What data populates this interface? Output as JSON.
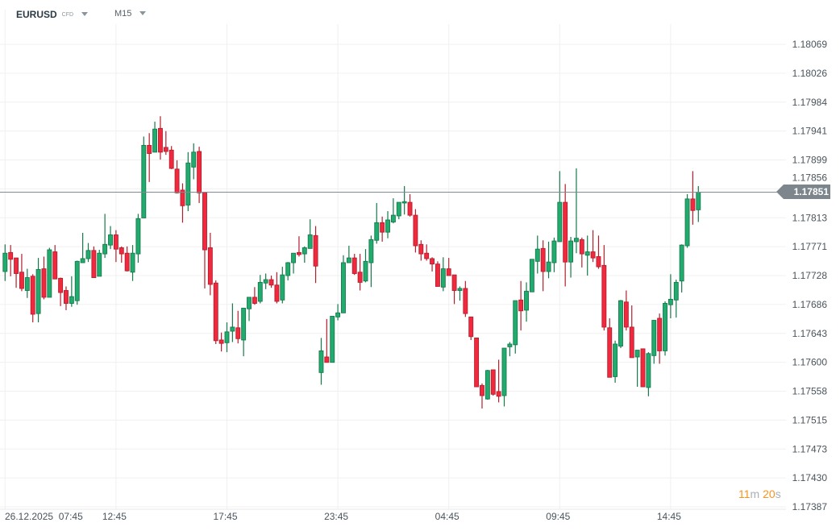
{
  "header": {
    "symbol": "EURUSD",
    "instrument_type": "CFD",
    "timeframe": "M15"
  },
  "current_price": {
    "label": "1.17851",
    "value": 1.17851
  },
  "timer": {
    "minutes": "11",
    "m": "m",
    "seconds": "20",
    "s": "s"
  },
  "colors": {
    "up": "#22ab6e",
    "up_border": "#157a4b",
    "down": "#f2293e",
    "down_border": "#b31f2e",
    "grid": "#f0f0f0",
    "price_line": "#7f8a91"
  },
  "chart_data": {
    "type": "candlestick",
    "title": "EURUSD M15",
    "ylim": [
      1.17387,
      1.18069
    ],
    "y_tick_labels": [
      "1.18069",
      "1.18026",
      "1.17984",
      "1.17941",
      "1.17899",
      "1.17856",
      "1.17813",
      "1.17771",
      "1.17728",
      "1.17686",
      "1.17643",
      "1.17600",
      "1.17558",
      "1.17515",
      "1.17473",
      "1.17430",
      "1.17387"
    ],
    "x_tick_labels": [
      {
        "candle": 1,
        "label": "26.12.2025  07:45"
      },
      {
        "candle": 21,
        "label": "12:45"
      },
      {
        "candle": 41,
        "label": "17:45"
      },
      {
        "candle": 61,
        "label": "23:45"
      },
      {
        "candle": 81,
        "label": "04:45"
      },
      {
        "candle": 101,
        "label": "09:45"
      },
      {
        "candle": 121,
        "label": "14:45"
      }
    ],
    "grid": true,
    "ohlc": [
      [
        1.17734,
        1.17774,
        1.1772,
        1.17761
      ],
      [
        1.17762,
        1.17773,
        1.17727,
        1.17752
      ],
      [
        1.17754,
        1.17754,
        1.1771,
        1.17731
      ],
      [
        1.17733,
        1.1776,
        1.17705,
        1.17709
      ],
      [
        1.17706,
        1.17738,
        1.17695,
        1.17725
      ],
      [
        1.17727,
        1.1773,
        1.17659,
        1.17671
      ],
      [
        1.17672,
        1.17754,
        1.17659,
        1.17737
      ],
      [
        1.17738,
        1.17756,
        1.17693,
        1.17696
      ],
      [
        1.17696,
        1.17769,
        1.17696,
        1.17766
      ],
      [
        1.17763,
        1.17773,
        1.17723,
        1.17723
      ],
      [
        1.17724,
        1.17725,
        1.17683,
        1.17703
      ],
      [
        1.17706,
        1.17712,
        1.17677,
        1.17687
      ],
      [
        1.17687,
        1.17727,
        1.17682,
        1.17697
      ],
      [
        1.17691,
        1.1775,
        1.17685,
        1.17749
      ],
      [
        1.17747,
        1.17791,
        1.17747,
        1.17753
      ],
      [
        1.17753,
        1.17776,
        1.17748,
        1.17765
      ],
      [
        1.17765,
        1.17771,
        1.17725,
        1.17725
      ],
      [
        1.17727,
        1.17766,
        1.17727,
        1.17761
      ],
      [
        1.1776,
        1.17819,
        1.17754,
        1.17774
      ],
      [
        1.17773,
        1.17801,
        1.17767,
        1.17788
      ],
      [
        1.17788,
        1.17795,
        1.17748,
        1.17767
      ],
      [
        1.17769,
        1.17771,
        1.17747,
        1.1776
      ],
      [
        1.17761,
        1.17771,
        1.17734,
        1.17735
      ],
      [
        1.17733,
        1.17773,
        1.1772,
        1.17761
      ],
      [
        1.1776,
        1.17819,
        1.17747,
        1.17812
      ],
      [
        1.17813,
        1.17933,
        1.17813,
        1.1792
      ],
      [
        1.1792,
        1.17938,
        1.17866,
        1.17908
      ],
      [
        1.1791,
        1.17955,
        1.1791,
        1.17944
      ],
      [
        1.17945,
        1.17963,
        1.17899,
        1.1791
      ],
      [
        1.17917,
        1.17941,
        1.17906,
        1.17911
      ],
      [
        1.17913,
        1.17919,
        1.17885,
        1.17886
      ],
      [
        1.17885,
        1.17898,
        1.17849,
        1.1785
      ],
      [
        1.17854,
        1.17864,
        1.17806,
        1.17831
      ],
      [
        1.17832,
        1.1791,
        1.17823,
        1.17894
      ],
      [
        1.17888,
        1.17923,
        1.1787,
        1.1791
      ],
      [
        1.17911,
        1.17918,
        1.17835,
        1.1785
      ],
      [
        1.17851,
        1.17851,
        1.17709,
        1.17766
      ],
      [
        1.17769,
        1.17791,
        1.17699,
        1.17715
      ],
      [
        1.17717,
        1.17721,
        1.17627,
        1.17632
      ],
      [
        1.17633,
        1.17644,
        1.17616,
        1.17628
      ],
      [
        1.17629,
        1.17659,
        1.17615,
        1.17645
      ],
      [
        1.17646,
        1.17687,
        1.1763,
        1.17652
      ],
      [
        1.17651,
        1.17676,
        1.17628,
        1.17635
      ],
      [
        1.17633,
        1.1768,
        1.17609,
        1.1768
      ],
      [
        1.17679,
        1.17696,
        1.17661,
        1.17696
      ],
      [
        1.17696,
        1.17711,
        1.17685,
        1.17687
      ],
      [
        1.1769,
        1.17729,
        1.17687,
        1.17718
      ],
      [
        1.17717,
        1.17731,
        1.17708,
        1.17722
      ],
      [
        1.17722,
        1.17728,
        1.1771,
        1.17714
      ],
      [
        1.17714,
        1.17733,
        1.17687,
        1.1769
      ],
      [
        1.17692,
        1.17741,
        1.17687,
        1.17729
      ],
      [
        1.17728,
        1.17748,
        1.17721,
        1.17747
      ],
      [
        1.17747,
        1.17761,
        1.17731,
        1.17761
      ],
      [
        1.17762,
        1.17786,
        1.17756,
        1.17759
      ],
      [
        1.1776,
        1.17771,
        1.17747,
        1.17769
      ],
      [
        1.17768,
        1.17811,
        1.17768,
        1.17788
      ],
      [
        1.17787,
        1.17801,
        1.17717,
        1.17742
      ],
      [
        1.17585,
        1.17636,
        1.17567,
        1.17617
      ],
      [
        1.17608,
        1.17664,
        1.176,
        1.176
      ],
      [
        1.176,
        1.17668,
        1.176,
        1.17668
      ],
      [
        1.17667,
        1.17686,
        1.17662,
        1.17673
      ],
      [
        1.17673,
        1.17758,
        1.17673,
        1.17747
      ],
      [
        1.17747,
        1.17772,
        1.17747,
        1.17754
      ],
      [
        1.17754,
        1.1776,
        1.17729,
        1.17731
      ],
      [
        1.17733,
        1.1776,
        1.17706,
        1.17718
      ],
      [
        1.1772,
        1.17767,
        1.17718,
        1.17749
      ],
      [
        1.17747,
        1.17787,
        1.17711,
        1.17781
      ],
      [
        1.1778,
        1.17835,
        1.17775,
        1.17806
      ],
      [
        1.17806,
        1.17815,
        1.17778,
        1.17792
      ],
      [
        1.17792,
        1.17823,
        1.17783,
        1.1781
      ],
      [
        1.17807,
        1.17842,
        1.17805,
        1.17817
      ],
      [
        1.17816,
        1.17836,
        1.17811,
        1.17836
      ],
      [
        1.17835,
        1.1786,
        1.17818,
        1.17837
      ],
      [
        1.17836,
        1.17848,
        1.17815,
        1.17817
      ],
      [
        1.17817,
        1.17826,
        1.17762,
        1.17772
      ],
      [
        1.17774,
        1.1778,
        1.1775,
        1.1776
      ],
      [
        1.17761,
        1.17774,
        1.1775,
        1.17753
      ],
      [
        1.17753,
        1.17755,
        1.17734,
        1.17745
      ],
      [
        1.17745,
        1.17749,
        1.17712,
        1.17712
      ],
      [
        1.17711,
        1.17755,
        1.17705,
        1.17738
      ],
      [
        1.17738,
        1.17754,
        1.17728,
        1.17728
      ],
      [
        1.17729,
        1.17729,
        1.17686,
        1.17706
      ],
      [
        1.17706,
        1.17712,
        1.17691,
        1.17709
      ],
      [
        1.17709,
        1.1772,
        1.17667,
        1.17672
      ],
      [
        1.17667,
        1.17667,
        1.17633,
        1.17638
      ],
      [
        1.17636,
        1.17636,
        1.17564,
        1.17564
      ],
      [
        1.17566,
        1.17569,
        1.17532,
        1.17551
      ],
      [
        1.17546,
        1.17589,
        1.17545,
        1.17588
      ],
      [
        1.17589,
        1.17589,
        1.17551,
        1.17553
      ],
      [
        1.17557,
        1.17604,
        1.17541,
        1.1755
      ],
      [
        1.17551,
        1.17621,
        1.17535,
        1.17621
      ],
      [
        1.17623,
        1.1763,
        1.17609,
        1.17627
      ],
      [
        1.17626,
        1.17691,
        1.17613,
        1.17691
      ],
      [
        1.17692,
        1.1772,
        1.17647,
        1.17676
      ],
      [
        1.17677,
        1.17718,
        1.1766,
        1.17705
      ],
      [
        1.17704,
        1.17752,
        1.17704,
        1.17752
      ],
      [
        1.17749,
        1.17787,
        1.17731,
        1.17767
      ],
      [
        1.17768,
        1.1778,
        1.17705,
        1.17734
      ],
      [
        1.17734,
        1.17778,
        1.17724,
        1.17748
      ],
      [
        1.17747,
        1.17784,
        1.17733,
        1.17779
      ],
      [
        1.17778,
        1.17882,
        1.17778,
        1.17836
      ],
      [
        1.17836,
        1.17863,
        1.17712,
        1.17748
      ],
      [
        1.17748,
        1.17785,
        1.17725,
        1.17779
      ],
      [
        1.17778,
        1.17886,
        1.17761,
        1.17783
      ],
      [
        1.17781,
        1.17784,
        1.1774,
        1.1776
      ],
      [
        1.17758,
        1.17787,
        1.17728,
        1.17763
      ],
      [
        1.17763,
        1.17795,
        1.17748,
        1.17754
      ],
      [
        1.17756,
        1.17787,
        1.17738,
        1.17741
      ],
      [
        1.17743,
        1.17773,
        1.17647,
        1.17652
      ],
      [
        1.17651,
        1.17665,
        1.17578,
        1.17578
      ],
      [
        1.17579,
        1.17632,
        1.1757,
        1.17627
      ],
      [
        1.17624,
        1.17692,
        1.17621,
        1.17691
      ],
      [
        1.17689,
        1.17706,
        1.17647,
        1.17652
      ],
      [
        1.17652,
        1.17684,
        1.17607,
        1.17607
      ],
      [
        1.17608,
        1.17618,
        1.17564,
        1.17618
      ],
      [
        1.1762,
        1.1762,
        1.17564,
        1.17564
      ],
      [
        1.17563,
        1.17615,
        1.1755,
        1.17613
      ],
      [
        1.1761,
        1.17662,
        1.17598,
        1.17662
      ],
      [
        1.17665,
        1.17672,
        1.17598,
        1.17617
      ],
      [
        1.17617,
        1.1769,
        1.1761,
        1.17687
      ],
      [
        1.17685,
        1.1773,
        1.17665,
        1.17693
      ],
      [
        1.17692,
        1.17722,
        1.17666,
        1.17718
      ],
      [
        1.1772,
        1.17774,
        1.17703,
        1.17773
      ],
      [
        1.17772,
        1.17848,
        1.17769,
        1.17841
      ],
      [
        1.17841,
        1.17882,
        1.17803,
        1.17824
      ],
      [
        1.17825,
        1.1786,
        1.17807,
        1.17851
      ]
    ]
  }
}
